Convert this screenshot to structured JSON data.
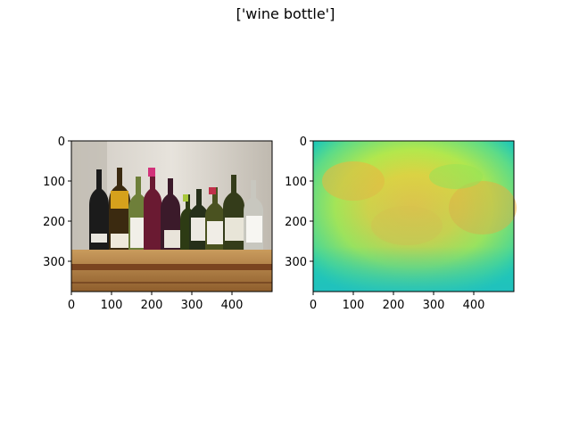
{
  "figure": {
    "title": "['wine bottle']"
  },
  "panels": [
    {
      "content": "photo of wine bottles on a wooden shelf",
      "xticks": [
        "0",
        "100",
        "200",
        "300",
        "400"
      ],
      "yticks": [
        "0",
        "100",
        "200",
        "300"
      ]
    },
    {
      "content": "heatmap (turbo-like colormap)",
      "xticks": [
        "0",
        "100",
        "200",
        "300",
        "400"
      ],
      "yticks": [
        "0",
        "100",
        "200",
        "300"
      ]
    }
  ],
  "colors": {
    "wall": "#d8d4cc",
    "shelf": "#b9874a",
    "heat_low": "#1fc8b6",
    "heat_mid": "#a6e84a",
    "heat_high": "#f3b83c"
  }
}
